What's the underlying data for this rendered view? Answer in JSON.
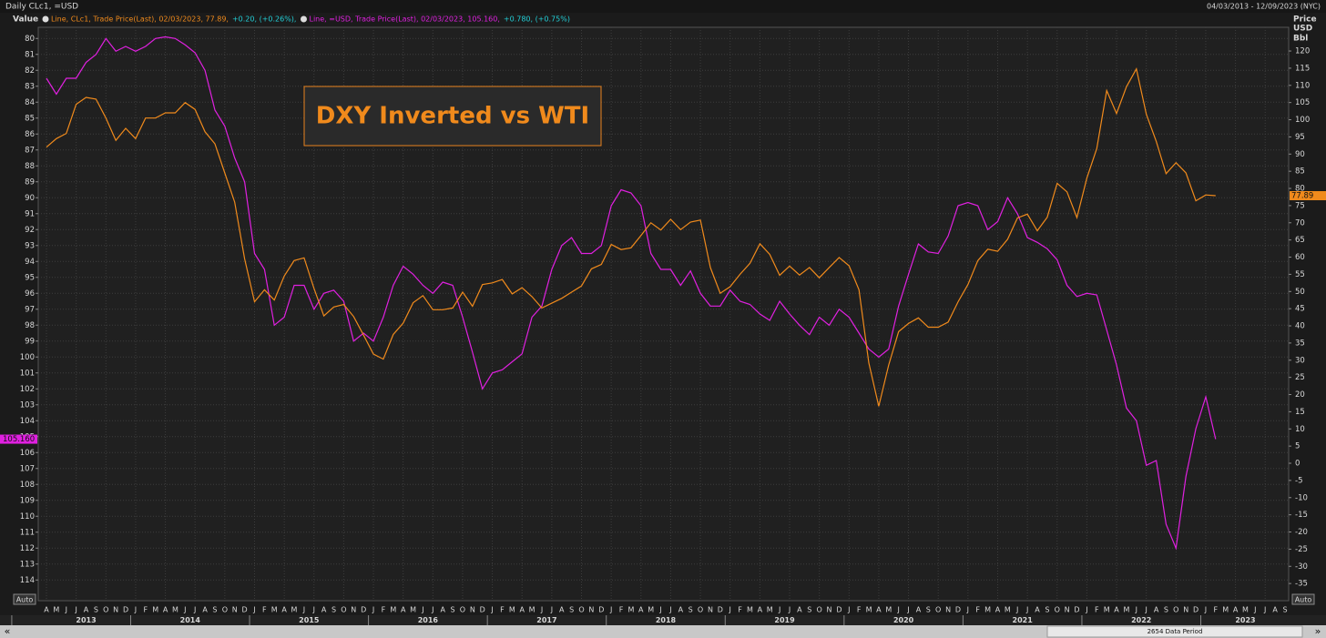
{
  "chart_data": {
    "type": "line",
    "header_left": "Daily CLc1, =USD",
    "header_right": "04/03/2013 - 12/09/2023 (NYC)",
    "left_axis_title": "Value",
    "right_axis_title": [
      "Price",
      "USD",
      "Bbl"
    ],
    "annotation": "DXY Inverted vs WTI",
    "auto_label": "Auto",
    "data_period": "2654 Data Period",
    "scroll_buttons": [
      "«",
      "»"
    ],
    "grid": true,
    "xlim": [
      "2013-04",
      "2023-09"
    ],
    "x_month_labels": [
      "A",
      "M",
      "J",
      "J",
      "A",
      "S",
      "O",
      "N",
      "D",
      "J",
      "F",
      "M",
      "A",
      "M",
      "J",
      "J",
      "A",
      "S",
      "O",
      "N",
      "D",
      "J",
      "F",
      "M",
      "A",
      "M",
      "J",
      "J",
      "A",
      "S",
      "O",
      "N",
      "D",
      "J",
      "F",
      "M",
      "A",
      "M",
      "J",
      "J",
      "A",
      "S",
      "O",
      "N",
      "D",
      "J",
      "F",
      "M",
      "A",
      "M",
      "J",
      "J",
      "A",
      "S",
      "O",
      "N",
      "D",
      "J",
      "F",
      "M",
      "A",
      "M",
      "J",
      "J",
      "A",
      "S",
      "O",
      "N",
      "D",
      "J",
      "F",
      "M",
      "A",
      "M",
      "J",
      "J",
      "A",
      "S",
      "O",
      "N",
      "D",
      "J",
      "F",
      "M",
      "A",
      "M",
      "J",
      "J",
      "A",
      "S",
      "O",
      "N",
      "D",
      "J",
      "F",
      "M",
      "A",
      "M",
      "J",
      "J",
      "A",
      "S",
      "O",
      "N",
      "D",
      "J",
      "F",
      "M",
      "A",
      "M",
      "J",
      "J",
      "A",
      "S",
      "O",
      "N",
      "D",
      "J",
      "F",
      "M",
      "A",
      "M",
      "J",
      "J",
      "A",
      "S"
    ],
    "x_year_labels": [
      "2013",
      "2014",
      "2015",
      "2016",
      "2017",
      "2018",
      "2019",
      "2020",
      "2021",
      "2022",
      "2023"
    ],
    "x": [
      "2013-04",
      "2013-05",
      "2013-06",
      "2013-07",
      "2013-08",
      "2013-09",
      "2013-10",
      "2013-11",
      "2013-12",
      "2014-01",
      "2014-02",
      "2014-03",
      "2014-04",
      "2014-05",
      "2014-06",
      "2014-07",
      "2014-08",
      "2014-09",
      "2014-10",
      "2014-11",
      "2014-12",
      "2015-01",
      "2015-02",
      "2015-03",
      "2015-04",
      "2015-05",
      "2015-06",
      "2015-07",
      "2015-08",
      "2015-09",
      "2015-10",
      "2015-11",
      "2015-12",
      "2016-01",
      "2016-02",
      "2016-03",
      "2016-04",
      "2016-05",
      "2016-06",
      "2016-07",
      "2016-08",
      "2016-09",
      "2016-10",
      "2016-11",
      "2016-12",
      "2017-01",
      "2017-02",
      "2017-03",
      "2017-04",
      "2017-05",
      "2017-06",
      "2017-07",
      "2017-08",
      "2017-09",
      "2017-10",
      "2017-11",
      "2017-12",
      "2018-01",
      "2018-02",
      "2018-03",
      "2018-04",
      "2018-05",
      "2018-06",
      "2018-07",
      "2018-08",
      "2018-09",
      "2018-10",
      "2018-11",
      "2018-12",
      "2019-01",
      "2019-02",
      "2019-03",
      "2019-04",
      "2019-05",
      "2019-06",
      "2019-07",
      "2019-08",
      "2019-09",
      "2019-10",
      "2019-11",
      "2019-12",
      "2020-01",
      "2020-02",
      "2020-03",
      "2020-04",
      "2020-05",
      "2020-06",
      "2020-07",
      "2020-08",
      "2020-09",
      "2020-10",
      "2020-11",
      "2020-12",
      "2021-01",
      "2021-02",
      "2021-03",
      "2021-04",
      "2021-05",
      "2021-06",
      "2021-07",
      "2021-08",
      "2021-09",
      "2021-10",
      "2021-11",
      "2021-12",
      "2022-01",
      "2022-02",
      "2022-03",
      "2022-04",
      "2022-05",
      "2022-06",
      "2022-07",
      "2022-08",
      "2022-09",
      "2022-10",
      "2022-11",
      "2022-12",
      "2023-01",
      "2023-02"
    ],
    "ylim": [
      115.3,
      79.3
    ],
    "yticks": [
      80,
      81,
      82,
      83,
      84,
      85,
      86,
      87,
      88,
      89,
      90,
      91,
      92,
      93,
      94,
      95,
      96,
      97,
      98,
      99,
      100,
      101,
      102,
      103,
      104,
      105,
      106,
      107,
      108,
      109,
      110,
      111,
      112,
      113,
      114
    ],
    "y2lim": [
      -40,
      126.9
    ],
    "y2ticks": [
      -35,
      -30,
      -25,
      -20,
      -15,
      -10,
      -5,
      0,
      5,
      10,
      15,
      20,
      25,
      30,
      35,
      40,
      45,
      50,
      55,
      60,
      65,
      70,
      75,
      80,
      85,
      90,
      95,
      100,
      105,
      110,
      115,
      120
    ],
    "series": [
      {
        "name": "Line, =USD, Trade Price(Last), 02/03/2023, 105.160,",
        "change": "+0.780, (+0.75%)",
        "color": "#e020e0",
        "axis": "y",
        "last_value_label": "105.160",
        "values": [
          82.5,
          83.5,
          82.5,
          82.5,
          81.5,
          81,
          80,
          80.8,
          80.5,
          80.8,
          80.5,
          80,
          79.9,
          80,
          80.4,
          80.9,
          82,
          84.5,
          85.5,
          87.5,
          89,
          93.5,
          94.5,
          98,
          97.5,
          95.5,
          95.5,
          97,
          96,
          95.8,
          96.5,
          99,
          98.5,
          99,
          97.5,
          95.5,
          94.3,
          94.8,
          95.5,
          96,
          95.3,
          95.5,
          97.5,
          99.7,
          102,
          101,
          100.8,
          100.3,
          99.8,
          97.5,
          96.8,
          94.5,
          93,
          92.5,
          93.5,
          93.5,
          93,
          90.5,
          89.5,
          89.7,
          90.5,
          93.5,
          94.5,
          94.5,
          95.5,
          94.6,
          96,
          96.8,
          96.8,
          95.8,
          96.5,
          96.7,
          97.3,
          97.7,
          96.5,
          97.3,
          98,
          98.6,
          97.5,
          98,
          97,
          97.5,
          98.5,
          99.5,
          100,
          99.5,
          96.8,
          94.8,
          92.9,
          93.4,
          93.5,
          92.4,
          90.5,
          90.3,
          90.5,
          92,
          91.5,
          90,
          91,
          92.5,
          92.8,
          93.2,
          93.9,
          95.5,
          96.2,
          96,
          96.1,
          98.3,
          100.5,
          103.2,
          104,
          106.8,
          106.5,
          110.5,
          112,
          107.5,
          104.5,
          102.5,
          105.16
        ]
      },
      {
        "name": "Line, CLc1, Trade Price(Last), 02/03/2023, 77.89,",
        "change": "+0.20, (+0.26%),",
        "color": "#f08a1c",
        "axis": "y2",
        "values": [
          92,
          94.5,
          96,
          104.5,
          106.5,
          106,
          100.5,
          94,
          97.5,
          94.5,
          100.5,
          100.5,
          102,
          102,
          105,
          103,
          96.5,
          93,
          84.5,
          76,
          59.5,
          47,
          50.5,
          47.5,
          54.5,
          59,
          59.8,
          50.9,
          42.9,
          45.5,
          46.2,
          42.7,
          37.3,
          31.8,
          30.3,
          37.5,
          40.8,
          46.7,
          48.8,
          44.7,
          44.7,
          45.2,
          49.8,
          45.7,
          52,
          52.5,
          53.5,
          49.3,
          51.1,
          48.5,
          45.2,
          46.6,
          48,
          49.8,
          51.6,
          56.6,
          57.9,
          63.7,
          62.2,
          62.7,
          66.3,
          70,
          67.9,
          71,
          68,
          70.2,
          70.8,
          57,
          49.5,
          51.4,
          55,
          58.2,
          63.9,
          60.8,
          54.7,
          57.4,
          54.8,
          57,
          54,
          57,
          59.9,
          57.5,
          50.5,
          29.2,
          16.6,
          28.6,
          38.3,
          40.7,
          42.3,
          39.6,
          39.6,
          41.1,
          47,
          52,
          59,
          62.3,
          61.7,
          65.2,
          71.4,
          72.5,
          67.7,
          71.6,
          81.5,
          79,
          71.5,
          83,
          91.6,
          108.5,
          101.8,
          109.6,
          114.8,
          101.6,
          93.7,
          84.3,
          87.5,
          84.5,
          76.4,
          78.1,
          77.89
        ]
      }
    ]
  }
}
